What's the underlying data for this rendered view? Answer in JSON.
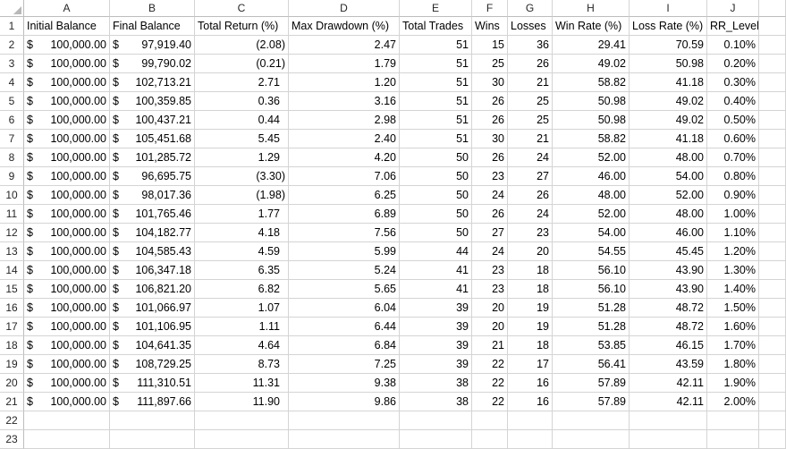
{
  "columns": [
    "A",
    "B",
    "C",
    "D",
    "E",
    "F",
    "G",
    "H",
    "I",
    "J"
  ],
  "row_numbers": [
    "1",
    "2",
    "3",
    "4",
    "5",
    "6",
    "7",
    "8",
    "9",
    "10",
    "11",
    "12",
    "13",
    "14",
    "15",
    "16",
    "17",
    "18",
    "19",
    "20",
    "21",
    "22",
    "23"
  ],
  "headers": [
    "Initial Balance",
    "Final Balance",
    "Total Return (%)",
    "Max Drawdown (%)",
    "Total Trades",
    "Wins",
    "Losses",
    "Win Rate (%)",
    "Loss Rate (%)",
    "RR_Level"
  ],
  "currency_symbol": "$",
  "rows": [
    [
      "100,000.00",
      "97,919.40",
      "(2.08)",
      "2.47",
      "51",
      "15",
      "36",
      "29.41",
      "70.59",
      "0.10%"
    ],
    [
      "100,000.00",
      "99,790.02",
      "(0.21)",
      "1.79",
      "51",
      "25",
      "26",
      "49.02",
      "50.98",
      "0.20%"
    ],
    [
      "100,000.00",
      "102,713.21",
      "2.71",
      "1.20",
      "51",
      "30",
      "21",
      "58.82",
      "41.18",
      "0.30%"
    ],
    [
      "100,000.00",
      "100,359.85",
      "0.36",
      "3.16",
      "51",
      "26",
      "25",
      "50.98",
      "49.02",
      "0.40%"
    ],
    [
      "100,000.00",
      "100,437.21",
      "0.44",
      "2.98",
      "51",
      "26",
      "25",
      "50.98",
      "49.02",
      "0.50%"
    ],
    [
      "100,000.00",
      "105,451.68",
      "5.45",
      "2.40",
      "51",
      "30",
      "21",
      "58.82",
      "41.18",
      "0.60%"
    ],
    [
      "100,000.00",
      "101,285.72",
      "1.29",
      "4.20",
      "50",
      "26",
      "24",
      "52.00",
      "48.00",
      "0.70%"
    ],
    [
      "100,000.00",
      "96,695.75",
      "(3.30)",
      "7.06",
      "50",
      "23",
      "27",
      "46.00",
      "54.00",
      "0.80%"
    ],
    [
      "100,000.00",
      "98,017.36",
      "(1.98)",
      "6.25",
      "50",
      "24",
      "26",
      "48.00",
      "52.00",
      "0.90%"
    ],
    [
      "100,000.00",
      "101,765.46",
      "1.77",
      "6.89",
      "50",
      "26",
      "24",
      "52.00",
      "48.00",
      "1.00%"
    ],
    [
      "100,000.00",
      "104,182.77",
      "4.18",
      "7.56",
      "50",
      "27",
      "23",
      "54.00",
      "46.00",
      "1.10%"
    ],
    [
      "100,000.00",
      "104,585.43",
      "4.59",
      "5.99",
      "44",
      "24",
      "20",
      "54.55",
      "45.45",
      "1.20%"
    ],
    [
      "100,000.00",
      "106,347.18",
      "6.35",
      "5.24",
      "41",
      "23",
      "18",
      "56.10",
      "43.90",
      "1.30%"
    ],
    [
      "100,000.00",
      "106,821.20",
      "6.82",
      "5.65",
      "41",
      "23",
      "18",
      "56.10",
      "43.90",
      "1.40%"
    ],
    [
      "100,000.00",
      "101,066.97",
      "1.07",
      "6.04",
      "39",
      "20",
      "19",
      "51.28",
      "48.72",
      "1.50%"
    ],
    [
      "100,000.00",
      "101,106.95",
      "1.11",
      "6.44",
      "39",
      "20",
      "19",
      "51.28",
      "48.72",
      "1.60%"
    ],
    [
      "100,000.00",
      "104,641.35",
      "4.64",
      "6.84",
      "39",
      "21",
      "18",
      "53.85",
      "46.15",
      "1.70%"
    ],
    [
      "100,000.00",
      "108,729.25",
      "8.73",
      "7.25",
      "39",
      "22",
      "17",
      "56.41",
      "43.59",
      "1.80%"
    ],
    [
      "100,000.00",
      "111,310.51",
      "11.31",
      "9.38",
      "38",
      "22",
      "16",
      "57.89",
      "42.11",
      "1.90%"
    ],
    [
      "100,000.00",
      "111,897.66",
      "11.90",
      "9.86",
      "38",
      "22",
      "16",
      "57.89",
      "42.11",
      "2.00%"
    ]
  ]
}
